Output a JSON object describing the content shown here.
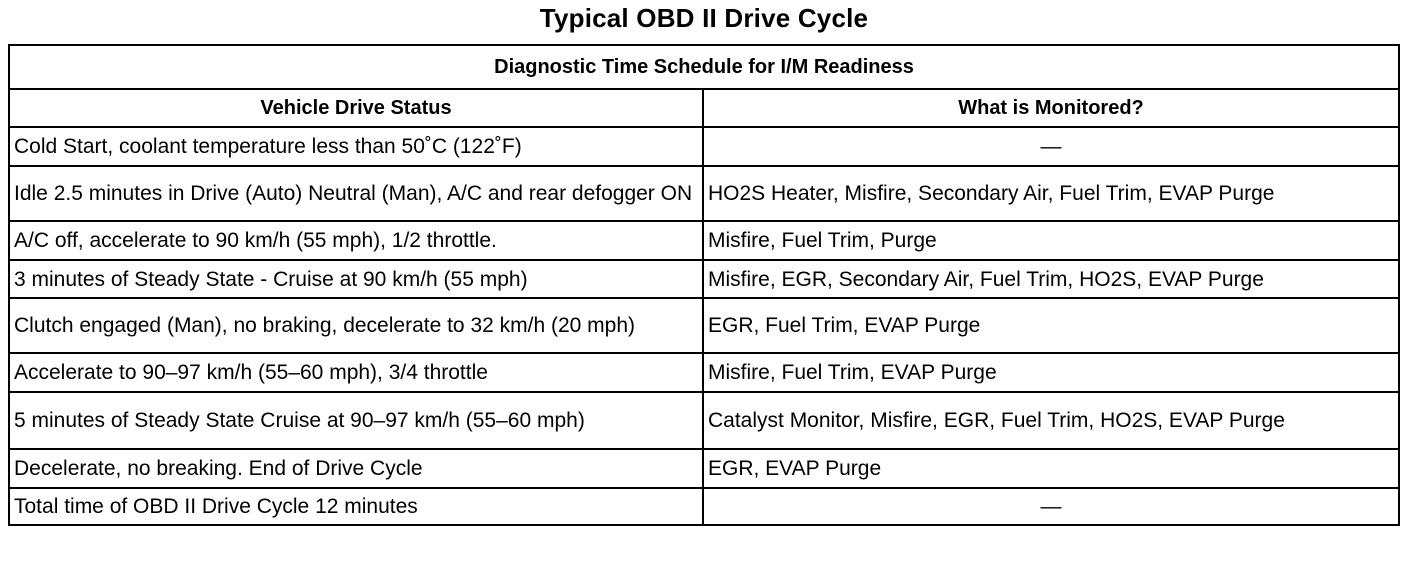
{
  "document": {
    "title": "Typical OBD II Drive Cycle"
  },
  "table": {
    "caption": "Diagnostic Time Schedule for I/M Readiness",
    "headers": {
      "status": "Vehicle Drive Status",
      "monitored": "What is Monitored?"
    },
    "rows": [
      {
        "status": "Cold Start, coolant temperature less than 50˚C (122˚F)",
        "monitored": "—"
      },
      {
        "status": "Idle 2.5 minutes in Drive (Auto) Neutral (Man), A/C and rear defogger ON",
        "monitored": "HO2S Heater, Misfire, Secondary Air, Fuel Trim, EVAP Purge"
      },
      {
        "status": "A/C off, accelerate to 90 km/h (55 mph), 1/2 throttle.",
        "monitored": "Misfire, Fuel Trim, Purge"
      },
      {
        "status": "3 minutes of Steady State - Cruise at 90 km/h (55 mph)",
        "monitored": "Misfire, EGR, Secondary Air, Fuel Trim, HO2S, EVAP Purge"
      },
      {
        "status": "Clutch engaged (Man), no braking, decelerate to 32 km/h (20 mph)",
        "monitored": "EGR, Fuel Trim, EVAP Purge"
      },
      {
        "status": "Accelerate to 90–97 km/h (55–60 mph), 3/4 throttle",
        "monitored": "Misfire, Fuel Trim, EVAP Purge"
      },
      {
        "status": "5 minutes of Steady State Cruise at 90–97 km/h (55–60 mph)",
        "monitored": "Catalyst Monitor, Misfire, EGR, Fuel Trim, HO2S, EVAP Purge"
      },
      {
        "status": "Decelerate, no breaking. End of Drive Cycle",
        "monitored": "EGR, EVAP Purge"
      },
      {
        "status": "Total time of OBD II Drive Cycle 12 minutes",
        "monitored": "—"
      }
    ]
  }
}
